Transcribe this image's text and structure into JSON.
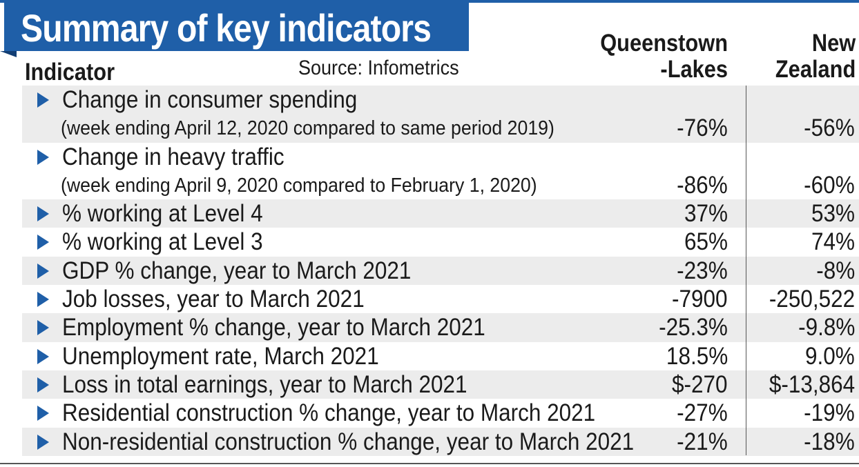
{
  "title": "Summary of key indicators",
  "header": {
    "indicator": "Indicator",
    "source": "Source: Infometrics",
    "col_ql": "Queenstown\n-Lakes",
    "col_nz": "New\nZealand"
  },
  "rows": [
    {
      "label": "Change in consumer spending",
      "ql": "",
      "nz": ""
    },
    {
      "sublabel": "(week ending April 12, 2020 compared to same period 2019)",
      "ql": "-76%",
      "nz": "-56%"
    },
    {
      "label": "Change in heavy traffic",
      "ql": "",
      "nz": ""
    },
    {
      "sublabel": "(week ending April 9, 2020 compared to February 1, 2020)",
      "ql": "-86%",
      "nz": "-60%"
    },
    {
      "label": "% working at Level 4",
      "ql": "37%",
      "nz": "53%"
    },
    {
      "label": "% working at Level 3",
      "ql": "65%",
      "nz": "74%"
    },
    {
      "label": "GDP % change, year to March 2021",
      "ql": "-23%",
      "nz": "-8%"
    },
    {
      "label": "Job losses, year to March 2021",
      "ql": "-7900",
      "nz": "-250,522"
    },
    {
      "label": "Employment % change, year to March 2021",
      "ql": "-25.3%",
      "nz": "-9.8%"
    },
    {
      "label": "Unemployment rate, March 2021",
      "ql": "18.5%",
      "nz": "9.0%"
    },
    {
      "label": "Loss in total earnings, year to March 2021",
      "ql": "$-270",
      "nz": "$-13,864"
    },
    {
      "label": "Residential construction % change, year to March 2021",
      "ql": "-27%",
      "nz": "-19%"
    },
    {
      "label": "Non-residential construction % change, year to March 2021",
      "ql": "-21%",
      "nz": "-18%"
    }
  ],
  "colors": {
    "accent": "#1f5fa8",
    "row_shade": "#ececec"
  },
  "icons": {
    "row_marker": "triangle-right-icon"
  }
}
